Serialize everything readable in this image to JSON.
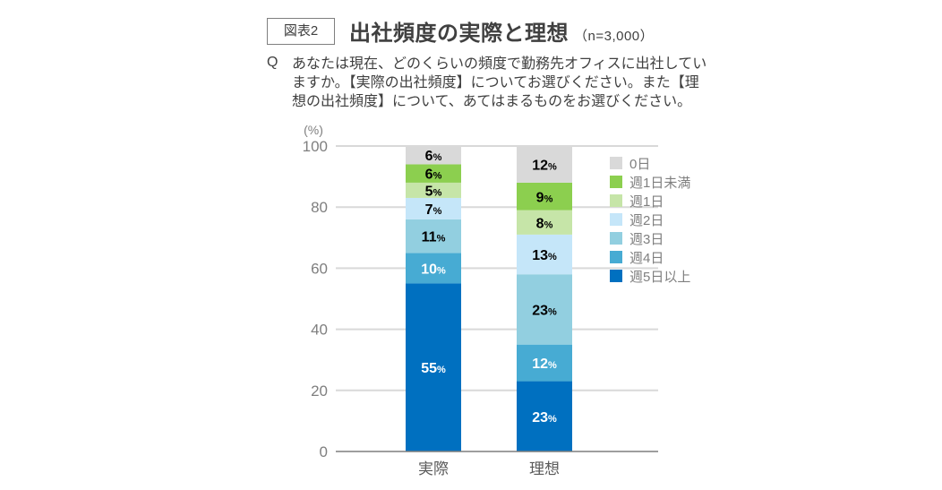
{
  "figure_label": "図表2",
  "title": "出社頻度の実際と理想",
  "sample": "（n=3,000）",
  "question_mark": "Q",
  "question": "あなたは現在、どのくらいの頻度で勤務先オフィスに出社していますか。【実際の出社頻度】についてお選びください。また【理想の出社頻度】について、あてはまるものをお選びください。",
  "chart_data": {
    "type": "bar",
    "stacked": true,
    "ylabel": "(%)",
    "ylim": [
      0,
      100
    ],
    "yticks": [
      0,
      20,
      40,
      60,
      80,
      100
    ],
    "grid": true,
    "legend_position": "right",
    "categories": [
      "実際",
      "理想"
    ],
    "series": [
      {
        "name": "週5日以上",
        "values": [
          55,
          23
        ],
        "color": "#0070c0",
        "label_color": "#ffffff"
      },
      {
        "name": "週4日",
        "values": [
          10,
          12
        ],
        "color": "#47abd3",
        "label_color": "#ffffff"
      },
      {
        "name": "週3日",
        "values": [
          11,
          23
        ],
        "color": "#92cfe0",
        "label_color": "#000000"
      },
      {
        "name": "週2日",
        "values": [
          7,
          13
        ],
        "color": "#c5e6f9",
        "label_color": "#000000"
      },
      {
        "name": "週1日",
        "values": [
          5,
          8
        ],
        "color": "#c6e5a8",
        "label_color": "#000000"
      },
      {
        "name": "週1日未満",
        "values": [
          6,
          9
        ],
        "color": "#8ccf4f",
        "label_color": "#000000"
      },
      {
        "name": "0日",
        "values": [
          6,
          12
        ],
        "color": "#d9d9d9",
        "label_color": "#000000"
      }
    ],
    "value_suffix": "%"
  }
}
